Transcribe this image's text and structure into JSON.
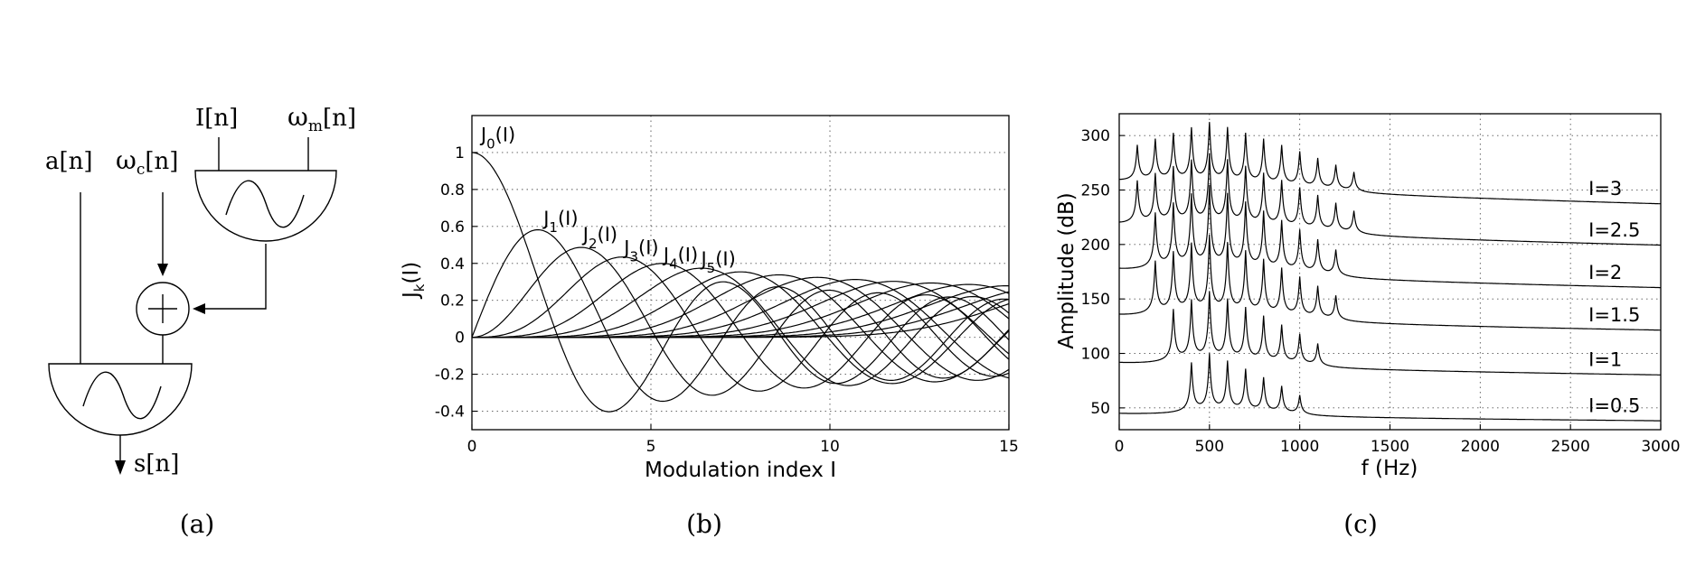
{
  "panels": {
    "a": {
      "caption": "(a)"
    },
    "b": {
      "caption": "(b)"
    },
    "c": {
      "caption": "(c)"
    }
  },
  "diagram": {
    "input_amplitude": "a[n]",
    "input_carrier_omega": "ω",
    "input_carrier_sub": "c",
    "input_carrier_suffix": "[n]",
    "input_index": "I[n]",
    "input_mod_omega": "ω",
    "input_mod_sub": "m",
    "input_mod_suffix": "[n]",
    "output": "s[n]"
  },
  "chart_data": [
    {
      "type": "line",
      "panel": "b",
      "title": "",
      "xlabel": "Modulation index I",
      "ylabel_main": "J",
      "ylabel_sub": "k",
      "ylabel_suffix": "(I)",
      "xlim": [
        0,
        15
      ],
      "ylim": [
        -0.5,
        1.2
      ],
      "xticks": [
        0,
        5,
        10,
        15
      ],
      "yticks": [
        -0.4,
        -0.2,
        0,
        0.2,
        0.4,
        0.6,
        0.8,
        1
      ],
      "ytick_labels": [
        "-0.4",
        "-0.2",
        "0",
        "0.2",
        "0.4",
        "0.6",
        "0.8",
        "1"
      ],
      "grid": true,
      "function": "Bessel function of the first kind J_k(I)",
      "orders": [
        0,
        1,
        2,
        3,
        4,
        5,
        6,
        7,
        8,
        9,
        10,
        11,
        12,
        13,
        14,
        15
      ],
      "series_labels": [
        {
          "main": "J",
          "sub": "0",
          "suffix": "(I)"
        },
        {
          "main": "J",
          "sub": "1",
          "suffix": "(I)"
        },
        {
          "main": "J",
          "sub": "2",
          "suffix": "(I)"
        },
        {
          "main": "J",
          "sub": "3",
          "suffix": "(I)"
        },
        {
          "main": "J",
          "sub": "4",
          "suffix": "(I)"
        },
        {
          "main": "J",
          "sub": "5",
          "suffix": "(I)"
        }
      ],
      "key_points": [
        {
          "order": 0,
          "x": 0,
          "y": 1.0
        },
        {
          "order": 0,
          "x": 3.83,
          "y": -0.4
        },
        {
          "order": 1,
          "x": 1.84,
          "y": 0.58
        },
        {
          "order": 2,
          "x": 3.05,
          "y": 0.49
        },
        {
          "order": 3,
          "x": 4.2,
          "y": 0.43
        },
        {
          "order": 4,
          "x": 5.32,
          "y": 0.4
        },
        {
          "order": 5,
          "x": 6.42,
          "y": 0.37
        }
      ]
    },
    {
      "type": "line",
      "panel": "c",
      "title": "",
      "xlabel": "f (Hz)",
      "ylabel": "Amplitude (dB)",
      "xlim": [
        0,
        3000
      ],
      "ylim": [
        30,
        320
      ],
      "xticks": [
        0,
        500,
        1000,
        1500,
        2000,
        2500,
        3000
      ],
      "yticks": [
        50,
        100,
        150,
        200,
        250,
        300
      ],
      "grid": true,
      "harmonic_spacing_hz": 100,
      "center_frequency_hz": 500,
      "series": [
        {
          "name": "I=0.5",
          "baseline_start": 44,
          "baseline_end": 38,
          "peak_top": 95,
          "peaks_hz": [
            400,
            500,
            600,
            700,
            800,
            900,
            1000
          ]
        },
        {
          "name": "I=1",
          "baseline_start": 90,
          "baseline_end": 80,
          "peak_top": 150,
          "peaks_hz": [
            300,
            400,
            500,
            600,
            700,
            800,
            900,
            1000,
            1100
          ]
        },
        {
          "name": "I=1.5",
          "baseline_start": 133,
          "baseline_end": 121,
          "peak_top": 200,
          "peaks_hz": [
            200,
            300,
            400,
            500,
            600,
            700,
            800,
            900,
            1000,
            1100,
            1200
          ]
        },
        {
          "name": "I=2",
          "baseline_start": 175,
          "baseline_end": 160,
          "peak_top": 245,
          "peaks_hz": [
            200,
            300,
            400,
            500,
            600,
            700,
            800,
            900,
            1000,
            1100,
            1200
          ]
        },
        {
          "name": "I=2.5",
          "baseline_start": 216,
          "baseline_end": 199,
          "peak_top": 275,
          "peaks_hz": [
            100,
            200,
            300,
            400,
            500,
            600,
            700,
            800,
            900,
            1000,
            1100,
            1200,
            1300
          ]
        },
        {
          "name": "I=3",
          "baseline_start": 256,
          "baseline_end": 237,
          "peak_top": 305,
          "peaks_hz": [
            100,
            200,
            300,
            400,
            500,
            600,
            700,
            800,
            900,
            1000,
            1100,
            1200,
            1300
          ]
        }
      ]
    }
  ]
}
